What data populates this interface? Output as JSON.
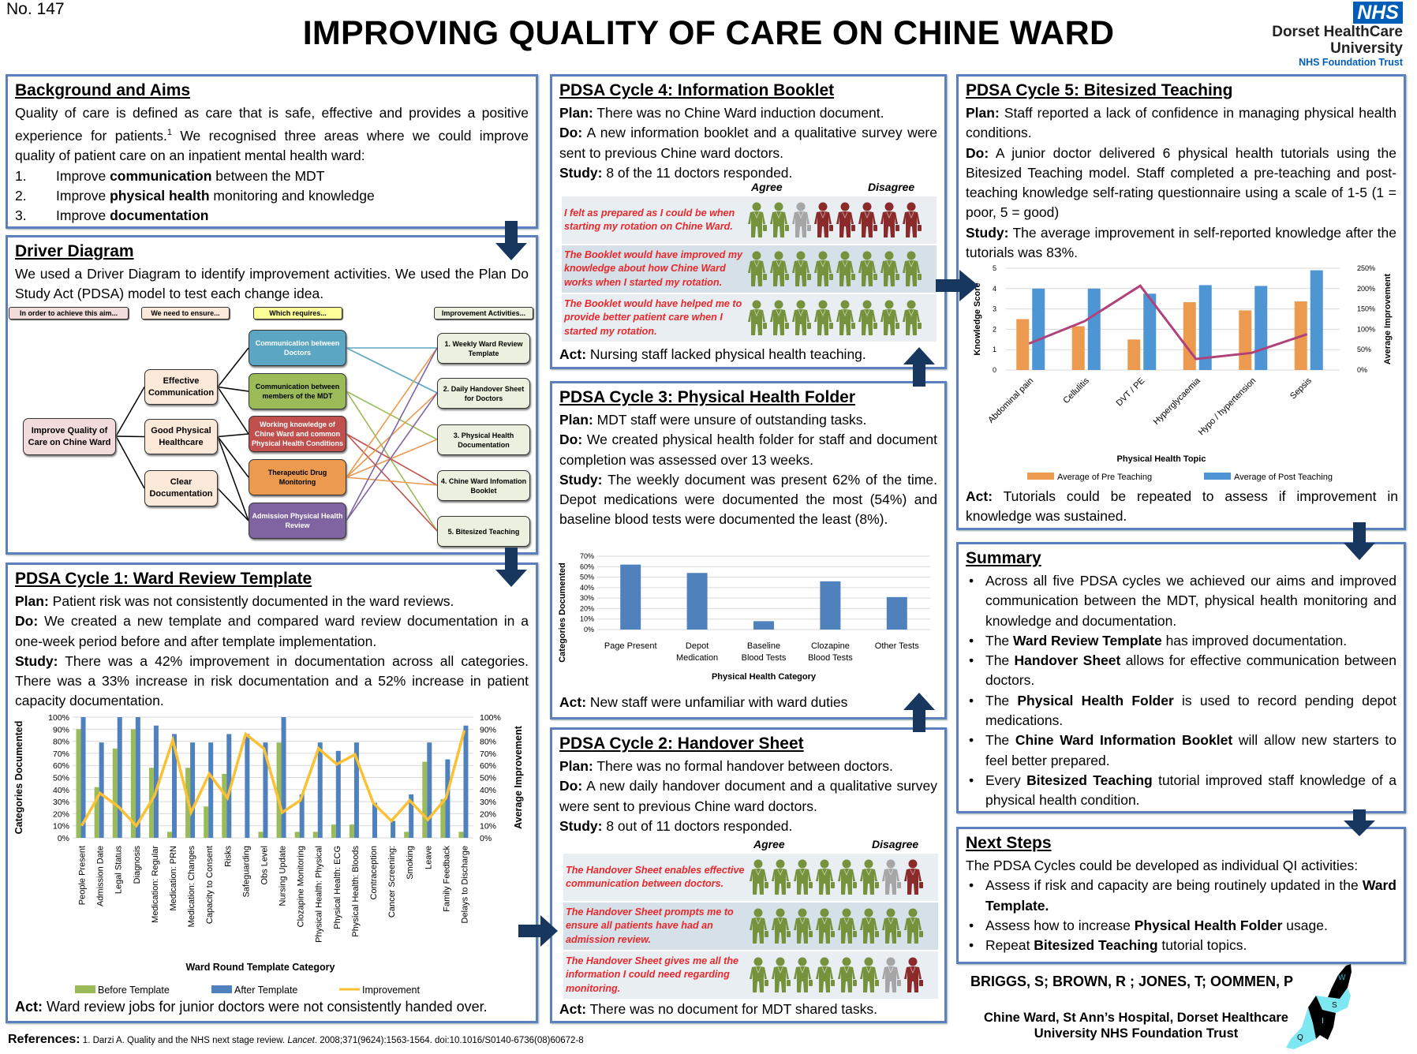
{
  "header": {
    "number": "No. 147",
    "title": "IMPROVING QUALITY OF CARE ON CHINE WARD",
    "logo_nhs": "NHS",
    "logo_line1": "Dorset HealthCare",
    "logo_line2": "University",
    "logo_line3": "NHS Foundation Trust"
  },
  "colors": {
    "panel_border": "#5b80bd",
    "arrow": "#17375e",
    "agree": "#76923c",
    "neutral": "#a6a6a6",
    "disagree": "#8b2a2a",
    "survey_text": "#e8282b",
    "nhs_blue": "#005eb8"
  },
  "background": {
    "title": "Background and Aims",
    "intro": [
      {
        "t": "Quality of care is defined as care that is safe, effective and provides a positive experience for patients."
      },
      {
        "t": "1",
        "sup": true
      },
      {
        "t": " We recognised three areas where we could improve quality of patient care on an inpatient mental health ward:"
      }
    ],
    "aims": [
      {
        "n": "1.",
        "seg": [
          {
            "t": "Improve "
          },
          {
            "t": "communication",
            "b": true
          },
          {
            "t": " between the MDT"
          }
        ]
      },
      {
        "n": "2.",
        "seg": [
          {
            "t": "Improve "
          },
          {
            "t": "physical health",
            "b": true
          },
          {
            "t": " monitoring and knowledge"
          }
        ]
      },
      {
        "n": "3.",
        "seg": [
          {
            "t": "Improve "
          },
          {
            "t": "documentation",
            "b": true
          }
        ]
      }
    ]
  },
  "driver": {
    "title": "Driver Diagram",
    "text": "We used a Driver Diagram to identify improvement activities. We used the Plan Do Study Act (PDSA) model to test each change idea.",
    "headers": [
      "In order  to achieve this aim...",
      "We need to ensure...",
      "Which requires...",
      "Improvement  Activities..."
    ],
    "aim": "Improve Quality of Care on Chine Ward",
    "primary": [
      "Effective Communication",
      "Good Physical Healthcare",
      "Clear Documentation"
    ],
    "secondary": [
      {
        "label": "Communication between Doctors",
        "color": "#5ba7c3"
      },
      {
        "label": "Communication between members of the MDT",
        "color": "#9bbb59"
      },
      {
        "label": "Working knowledge of Chine Ward and common Physical Health Conditions",
        "color": "#c0504d"
      },
      {
        "label": "Therapeutic Drug Monitoring",
        "color": "#eb9a4f"
      },
      {
        "label": "Admission Physical Health Review",
        "color": "#8064a2"
      }
    ],
    "activities": [
      "1. Weekly Ward Review Template",
      "2. Daily Handover Sheet for Doctors",
      "3. Physical Health Documentation",
      "4. Chine Ward Infomation Booklet",
      "5. Bitesized Teaching"
    ],
    "links_primary": [
      [
        0,
        0
      ],
      [
        0,
        1
      ],
      [
        0,
        2
      ],
      [
        1,
        2
      ],
      [
        1,
        3
      ],
      [
        1,
        4
      ],
      [
        2,
        4
      ]
    ],
    "links_activity": [
      [
        0,
        0
      ],
      [
        0,
        1
      ],
      [
        1,
        2
      ],
      [
        1,
        4
      ],
      [
        2,
        3
      ],
      [
        2,
        4
      ],
      [
        3,
        0
      ],
      [
        3,
        1
      ],
      [
        3,
        2
      ],
      [
        3,
        3
      ],
      [
        4,
        0
      ],
      [
        4,
        1
      ]
    ]
  },
  "cycle1": {
    "title": "PDSA Cycle 1: Ward Review Template",
    "plan": {
      "label": "Plan:",
      "text": " Patient risk was not consistently documented in the ward reviews."
    },
    "do": {
      "label": "Do:",
      "text": " We created a new template and compared ward review documentation in a one-week period before and after template implementation."
    },
    "study": {
      "label": "Study:",
      "text": " There was a 42% improvement in documentation across all categories. There was a 33% increase in risk documentation and a 52% increase in patient capacity documentation."
    },
    "act": {
      "label": "Act:",
      "text": " Ward review jobs for junior doctors were not consistently handed over."
    }
  },
  "cycle2": {
    "title": "PDSA Cycle 2: Handover Sheet",
    "plan": {
      "label": "Plan:",
      "text": " There was no formal handover between doctors."
    },
    "do": {
      "label": "Do:",
      "text": " A new daily handover document and a qualitative survey were sent to previous Chine ward doctors."
    },
    "study": {
      "label": "Study:",
      "text": " 8 out of 11 doctors responded."
    },
    "agree": "Agree",
    "disagree": "Disagree",
    "rows": [
      {
        "text": "The Handover Sheet enables effective communication between doctors.",
        "icons": [
          "agree",
          "agree",
          "agree",
          "agree",
          "agree",
          "agree",
          "neutral",
          "disagree"
        ]
      },
      {
        "text": "The Handover Sheet prompts me to ensure all patients have had an admission review.",
        "icons": [
          "agree",
          "agree",
          "agree",
          "agree",
          "agree",
          "agree",
          "agree",
          "agree"
        ]
      },
      {
        "text": "The Handover Sheet gives me all the information I could need regarding monitoring.",
        "icons": [
          "agree",
          "agree",
          "agree",
          "agree",
          "agree",
          "agree",
          "neutral",
          "disagree"
        ]
      }
    ],
    "act": {
      "label": "Act:",
      "text": " There was no document for MDT shared tasks."
    }
  },
  "cycle3": {
    "title": "PDSA Cycle 3: Physical Health Folder",
    "plan": {
      "label": "Plan:",
      "text": " MDT staff were unsure of outstanding tasks."
    },
    "do": {
      "label": "Do:",
      "text": " We created physical health folder for staff and document completion was assessed over 13 weeks."
    },
    "study": {
      "label": "Study:",
      "text": " The weekly document was present 62% of the time. Depot medications were documented the most (54%) and baseline blood tests were documented the least (8%)."
    },
    "act": {
      "label": "Act:",
      "text": " New staff were unfamiliar with ward duties"
    }
  },
  "cycle4": {
    "title": "PDSA Cycle 4: Information Booklet",
    "plan": {
      "label": "Plan:",
      "text": " There was no Chine Ward induction document."
    },
    "do": {
      "label": "Do:",
      "text": " A new information booklet and a qualitative survey were sent to previous Chine ward doctors."
    },
    "study": {
      "label": "Study:",
      "text": " 8 of the 11 doctors responded."
    },
    "agree": "Agree",
    "disagree": "Disagree",
    "rows": [
      {
        "text": "I felt as prepared as I could be when starting my rotation on Chine Ward.",
        "icons": [
          "agree",
          "agree",
          "neutral",
          "disagree",
          "disagree",
          "disagree",
          "disagree",
          "disagree"
        ]
      },
      {
        "text": "The Booklet would have improved my knowledge about how Chine Ward works when I started my rotation.",
        "icons": [
          "agree",
          "agree",
          "agree",
          "agree",
          "agree",
          "agree",
          "agree",
          "agree"
        ]
      },
      {
        "text": "The Booklet would have helped me to provide better patient care when I started my rotation.",
        "icons": [
          "agree",
          "agree",
          "agree",
          "agree",
          "agree",
          "agree",
          "agree",
          "agree"
        ]
      }
    ],
    "act": {
      "label": "Act:",
      "text": " Nursing staff lacked physical health teaching."
    }
  },
  "cycle5": {
    "title": "PDSA Cycle 5: Bitesized Teaching",
    "plan": {
      "label": "Plan:",
      "text": " Staff reported a lack of confidence in managing physical health conditions."
    },
    "do": {
      "label": "Do:",
      "text": " A junior doctor delivered 6 physical health tutorials using the Bitesized Teaching model. Staff completed a pre-teaching and post-teaching knowledge self-rating questionnaire using a scale of 1-5 (1 = poor, 5 = good)"
    },
    "study": {
      "label": "Study:",
      "text": " The average improvement in self-reported knowledge after the tutorials was 83%."
    },
    "act": {
      "label": "Act:",
      "text": " Tutorials could be repeated to assess if improvement in knowledge was sustained."
    }
  },
  "summary": {
    "title": "Summary",
    "items": [
      [
        {
          "t": "Across all five PDSA cycles we achieved our aims and improved communication between the MDT, physical health monitoring and knowledge and documentation."
        }
      ],
      [
        {
          "t": "The "
        },
        {
          "t": "Ward Review Template",
          "b": true
        },
        {
          "t": " has improved documentation."
        }
      ],
      [
        {
          "t": "The "
        },
        {
          "t": "Handover Sheet",
          "b": true
        },
        {
          "t": " allows for effective communication between doctors."
        }
      ],
      [
        {
          "t": "The "
        },
        {
          "t": "Physical Health Folder",
          "b": true
        },
        {
          "t": " is used to record pending depot medications."
        }
      ],
      [
        {
          "t": "The "
        },
        {
          "t": "Chine Ward Information Booklet",
          "b": true
        },
        {
          "t": " will allow new starters to feel better prepared."
        }
      ],
      [
        {
          "t": "Every "
        },
        {
          "t": "Bitesized Teaching",
          "b": true
        },
        {
          "t": " tutorial improved staff knowledge of a physical health condition."
        }
      ]
    ]
  },
  "next": {
    "title": "Next Steps",
    "intro": "The PDSA Cycles could be developed as individual QI activities:",
    "items": [
      [
        {
          "t": "Assess if risk and capacity are being routinely updated in the "
        },
        {
          "t": "Ward Template.",
          "b": true
        }
      ],
      [
        {
          "t": "Assess how to increase "
        },
        {
          "t": "Physical Health Folder",
          "b": true
        },
        {
          "t": " usage."
        }
      ],
      [
        {
          "t": "Repeat "
        },
        {
          "t": "Bitesized Teaching",
          "b": true
        },
        {
          "t": " tutorial topics."
        }
      ]
    ]
  },
  "authors": {
    "names": "BRIGGS, S; BROWN, R ; JONES, T; OOMMEN, P",
    "affil1": "Chine Ward, St Ann’s Hospital, Dorset Healthcare",
    "affil2": "University NHS Foundation Trust",
    "map_labels": [
      "W",
      "S",
      "I",
      "Q"
    ]
  },
  "references": {
    "label": "References:",
    "pre": " 1. Darzi A. Quality and the NHS next stage review. ",
    "journal": "Lancet",
    "post": ". 2008;371(9624):1563-1564. doi:10.1016/S0140-6736(08)60672-8"
  },
  "chart_data": [
    {
      "type": "bar",
      "xlabel": "Ward Round Template Category",
      "ylabel": "Categories Documented",
      "y2label": "Average Improvement",
      "ylim": [
        0,
        100
      ],
      "y2lim": [
        0,
        100
      ],
      "grid": true,
      "legend": "bottom",
      "yticks": [
        "0%",
        "10%",
        "20%",
        "30%",
        "40%",
        "50%",
        "60%",
        "70%",
        "80%",
        "90%",
        "100%"
      ],
      "categories": [
        "People Present",
        "Admission Date",
        "Legal Status",
        "Diagnosis",
        "Medication: Regular",
        "Medication: PRN",
        "Medication: Changes",
        "Capacity to Consent",
        "Risks",
        "Safeguarding",
        "Obs Level",
        "Nursing Update",
        "Clozapine Monitoring",
        "Physical Health: Physical",
        "Physical Health: ECG",
        "Physical Health: Bloods",
        "Contraception",
        "Cancer Screening:",
        "Smoking",
        "Leave",
        "Family Feedback",
        "Delays to Discharge"
      ],
      "series": [
        {
          "name": "Before Template",
          "type": "bar",
          "color": "#9bbb59",
          "values": [
            90,
            42,
            74,
            90,
            58,
            5,
            58,
            26,
            53,
            0,
            5,
            79,
            5,
            5,
            11,
            11,
            0,
            0,
            5,
            63,
            32,
            5
          ]
        },
        {
          "name": "After Template",
          "type": "bar",
          "color": "#4f81bd",
          "values": [
            100,
            79,
            100,
            100,
            93,
            86,
            79,
            79,
            86,
            86,
            79,
            100,
            36,
            79,
            72,
            79,
            29,
            14,
            36,
            79,
            65,
            93
          ]
        },
        {
          "name": "Improvement",
          "type": "line",
          "axis": "right",
          "color": "#fbc135",
          "values": [
            10,
            37,
            26,
            10,
            35,
            81,
            21,
            53,
            33,
            86,
            74,
            21,
            31,
            74,
            61,
            69,
            29,
            14,
            31,
            15,
            33,
            89
          ]
        }
      ]
    },
    {
      "type": "bar",
      "xlabel": "Physical Health Category",
      "ylabel": "Categories Documented",
      "ylim": [
        0,
        70
      ],
      "grid": true,
      "yticks": [
        "0%",
        "10%",
        "20%",
        "30%",
        "40%",
        "50%",
        "60%",
        "70%"
      ],
      "categories": [
        "Page Present",
        "Depot Medication",
        "Baseline Blood Tests",
        "Clozapine Blood Tests",
        "Other Tests"
      ],
      "series": [
        {
          "color": "#4f81bd",
          "values": [
            62,
            54,
            8,
            46,
            31
          ]
        }
      ]
    },
    {
      "type": "bar",
      "xlabel": "Physical Health Topic",
      "ylabel": "Knowledge Score",
      "y2label": "Average Improvement",
      "ylim": [
        0,
        5
      ],
      "y2lim": [
        0,
        250
      ],
      "grid": true,
      "legend": "bottom",
      "yticks": [
        "0",
        "1",
        "2",
        "3",
        "4",
        "5"
      ],
      "y2ticks": [
        "0%",
        "50%",
        "100%",
        "150%",
        "200%",
        "250%"
      ],
      "categories": [
        "Abdominal pain",
        "Cellulitis",
        "DVT / PE",
        "Hyperglycaemia",
        "Hypo / hypertension",
        "Sepsis"
      ],
      "series": [
        {
          "name": "Average of Pre Teaching",
          "type": "bar",
          "color": "#eb9a4f",
          "values": [
            2.5,
            2.15,
            1.5,
            3.33,
            2.93,
            3.37
          ]
        },
        {
          "name": "Average of Post Teaching",
          "type": "bar",
          "color": "#4e95d4",
          "values": [
            4.0,
            4.0,
            3.75,
            4.17,
            4.13,
            4.9
          ]
        },
        {
          "type": "line",
          "axis": "right",
          "color": "#b0427a",
          "values": [
            65,
            120,
            207,
            27,
            42,
            88
          ]
        }
      ]
    }
  ]
}
